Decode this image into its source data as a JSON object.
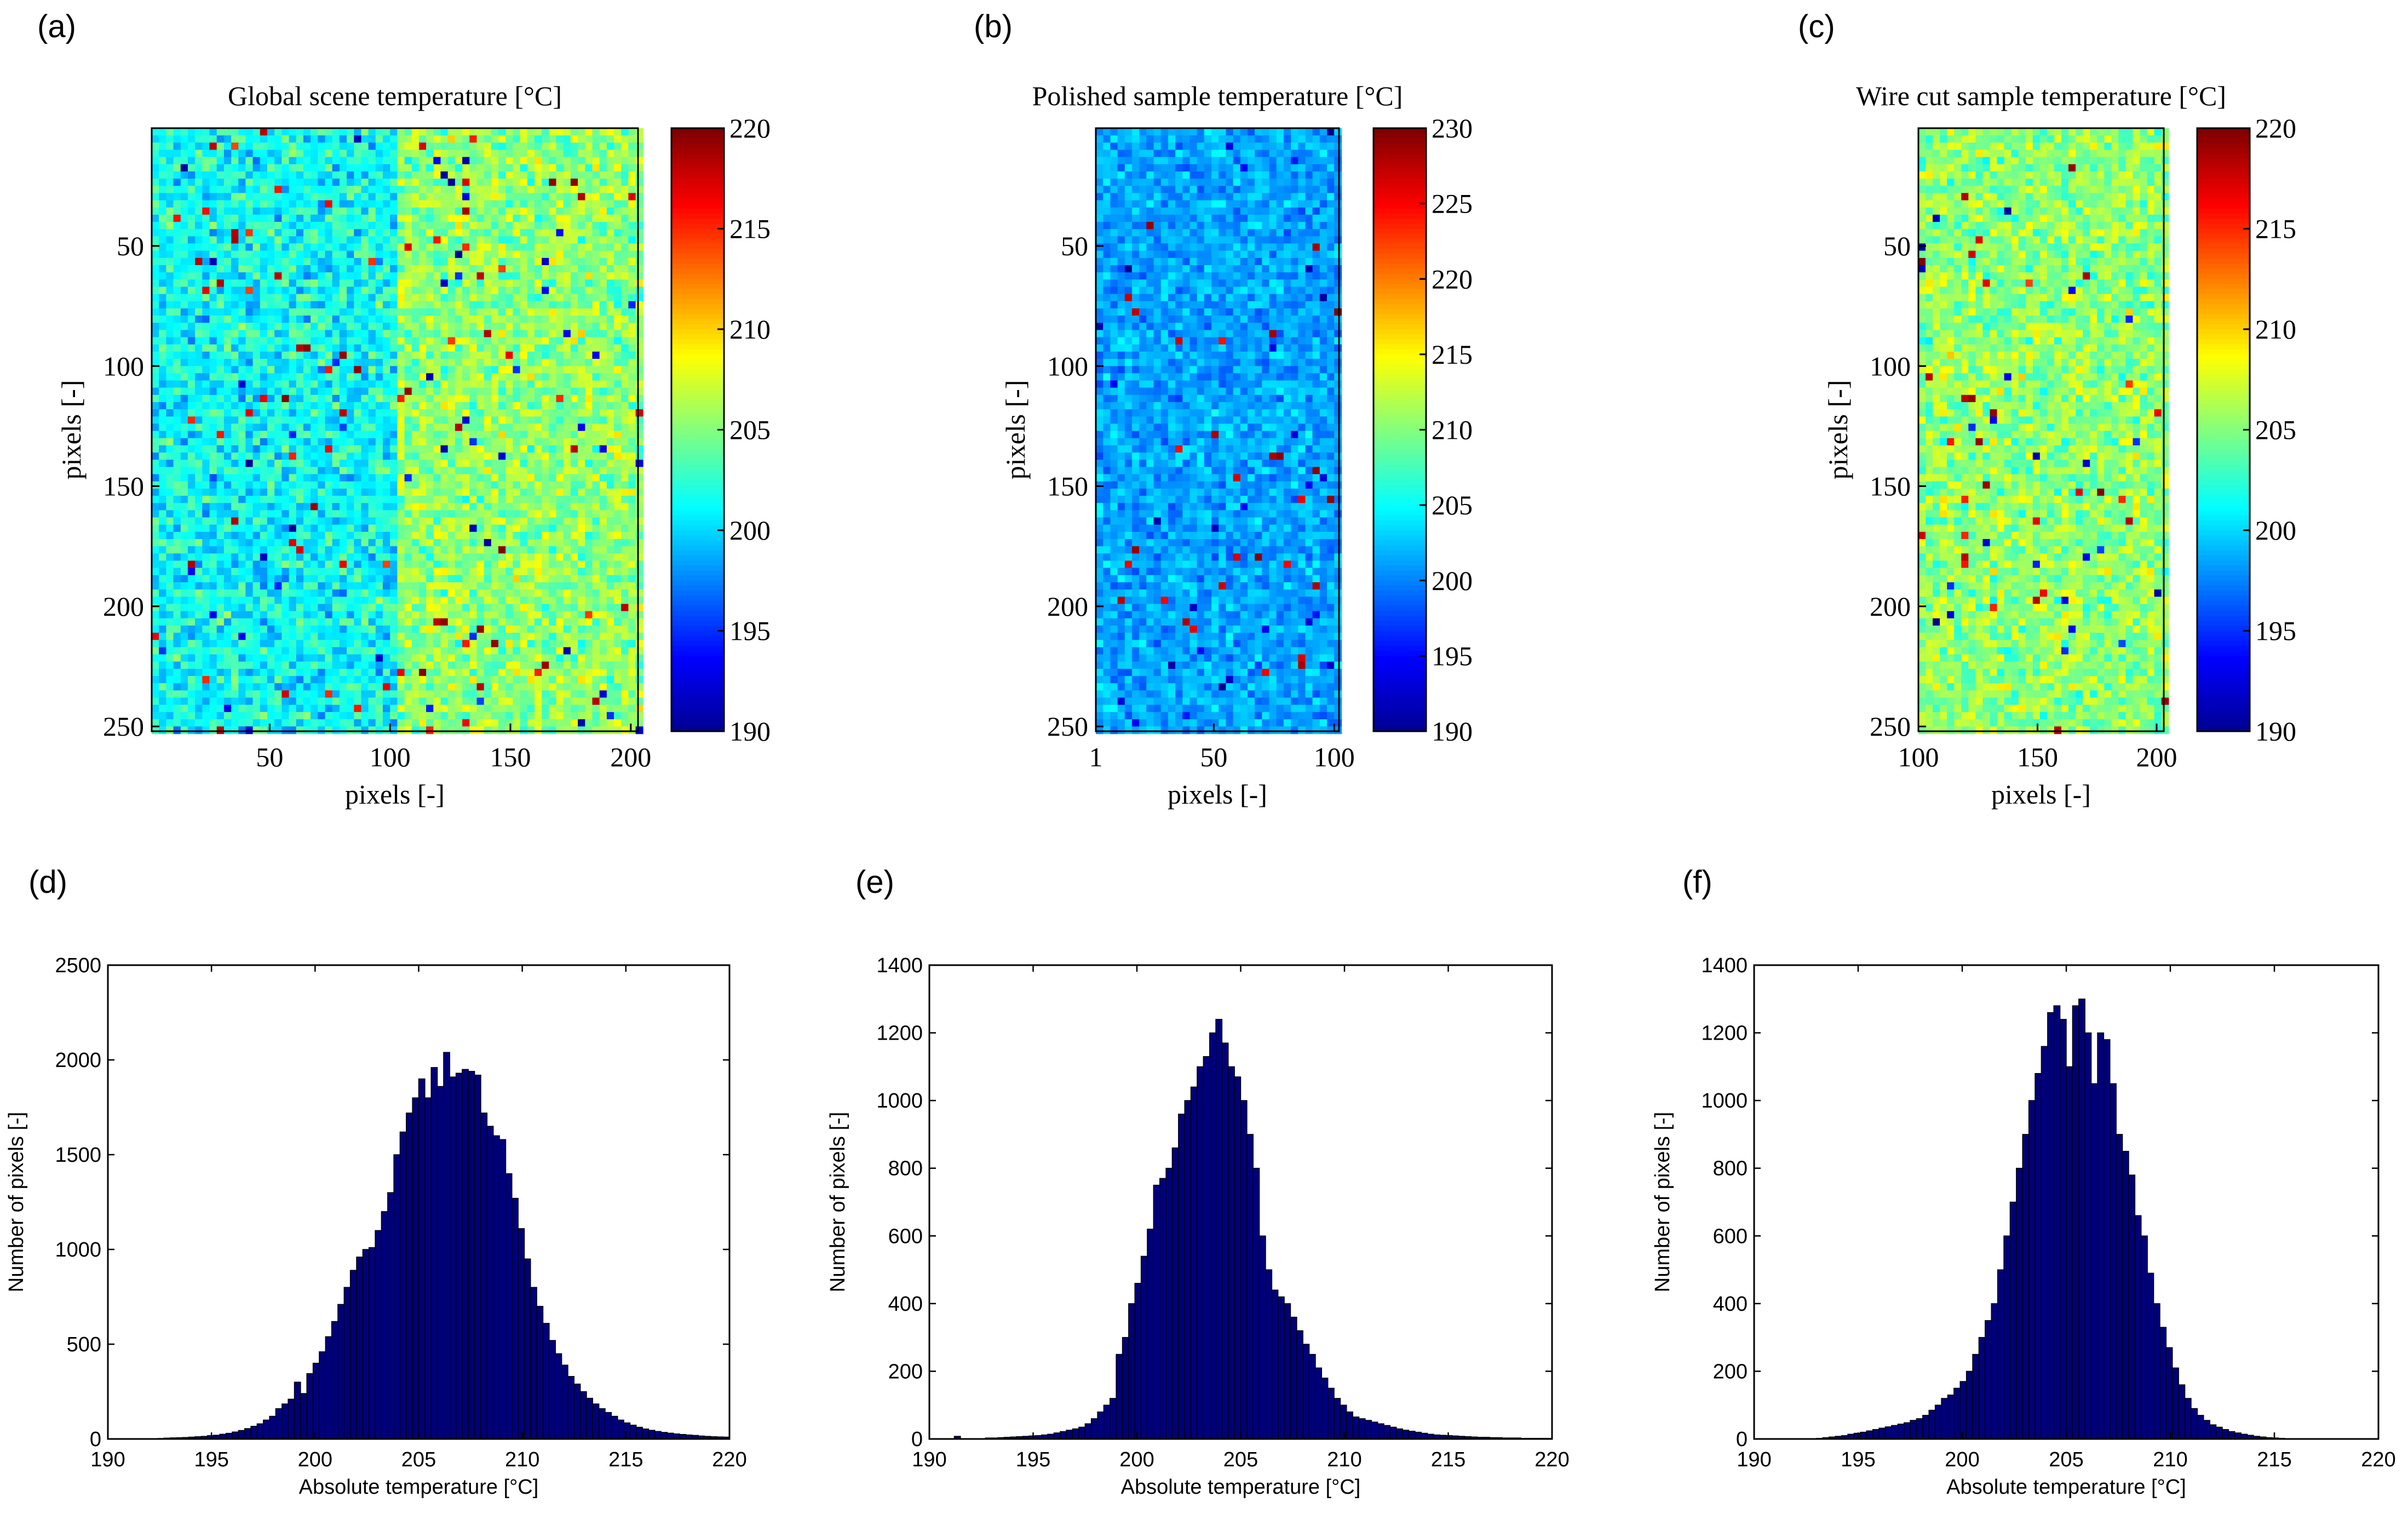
{
  "figure": {
    "panel_labels": [
      "(a)",
      "(b)",
      "(c)",
      "(d)",
      "(e)",
      "(f)"
    ]
  },
  "colormap": [
    "#00008F",
    "#0000FF",
    "#0080FF",
    "#00FFFF",
    "#80FF80",
    "#FFFF00",
    "#FF8000",
    "#FF0000",
    "#800000"
  ],
  "chart_data": [
    {
      "id": "a",
      "type": "heatmap",
      "title": "Global scene temperature [°C]",
      "xlabel": "pixels [-]",
      "ylabel": "pixels [-]",
      "xlim": [
        1,
        203
      ],
      "ylim": [
        1,
        252
      ],
      "xticks": [
        50,
        100,
        150,
        200
      ],
      "xtick_labels": [
        "50",
        "100",
        "150",
        "200"
      ],
      "yticks": [
        50,
        100,
        150,
        200,
        250
      ],
      "ytick_labels": [
        "50",
        "100",
        "150",
        "200",
        "250"
      ],
      "clim": [
        190,
        220
      ],
      "colorbar_ticks": [
        190,
        195,
        200,
        205,
        210,
        215,
        220
      ],
      "colorbar_labels": [
        "190",
        "195",
        "200",
        "205",
        "210",
        "215",
        "220"
      ],
      "field": {
        "left_mean": 201.5,
        "right_mean": 205.5,
        "split_x": 102,
        "noise": 4.5
      }
    },
    {
      "id": "b",
      "type": "heatmap",
      "title": "Polished sample temperature [°C]",
      "xlabel": "pixels [-]",
      "ylabel": "pixels [-]",
      "xlim": [
        1,
        102
      ],
      "ylim": [
        1,
        252
      ],
      "xticks": [
        1,
        50,
        100
      ],
      "xtick_labels": [
        "1",
        "50",
        "100"
      ],
      "yticks": [
        50,
        100,
        150,
        200,
        250
      ],
      "ytick_labels": [
        "50",
        "100",
        "150",
        "200",
        "250"
      ],
      "clim": [
        190,
        230
      ],
      "colorbar_ticks": [
        190,
        195,
        200,
        205,
        210,
        215,
        220,
        225,
        230
      ],
      "colorbar_labels": [
        "190",
        "195",
        "200",
        "205",
        "210",
        "215",
        "220",
        "225",
        "230"
      ],
      "field": {
        "left_mean": 201.5,
        "right_mean": 201.5,
        "split_x": 999,
        "noise": 4.0
      }
    },
    {
      "id": "c",
      "type": "heatmap",
      "title": "Wire cut sample temperature [°C]",
      "xlabel": "pixels [-]",
      "ylabel": "pixels [-]",
      "xlim": [
        100,
        203
      ],
      "ylim": [
        1,
        252
      ],
      "xticks": [
        100,
        150,
        200
      ],
      "xtick_labels": [
        "100",
        "150",
        "200"
      ],
      "yticks": [
        50,
        100,
        150,
        200,
        250
      ],
      "ytick_labels": [
        "50",
        "100",
        "150",
        "200",
        "250"
      ],
      "clim": [
        190,
        220
      ],
      "colorbar_ticks": [
        190,
        195,
        200,
        205,
        210,
        215,
        220
      ],
      "colorbar_labels": [
        "190",
        "195",
        "200",
        "205",
        "210",
        "215",
        "220"
      ],
      "field": {
        "left_mean": 205.5,
        "right_mean": 205.5,
        "split_x": 999,
        "noise": 4.5
      }
    },
    {
      "id": "d",
      "type": "bar",
      "subtype": "histogram",
      "xlabel": "Absolute temperature [°C]",
      "ylabel": "Number of pixels [-]",
      "xlim": [
        190,
        220
      ],
      "ylim": [
        0,
        2500
      ],
      "xticks": [
        190,
        195,
        200,
        205,
        210,
        215,
        220
      ],
      "xtick_labels": [
        "190",
        "195",
        "200",
        "205",
        "210",
        "215",
        "220"
      ],
      "yticks": [
        0,
        500,
        1000,
        1500,
        2000,
        2500
      ],
      "ytick_labels": [
        "0",
        "500",
        "1000",
        "1500",
        "2000",
        "2500"
      ],
      "bin_start": 190,
      "bin_width": 0.3,
      "values": [
        0,
        0,
        0,
        0,
        0,
        0,
        0,
        2,
        3,
        5,
        6,
        7,
        8,
        10,
        12,
        14,
        18,
        20,
        25,
        30,
        37,
        45,
        55,
        67,
        80,
        100,
        120,
        160,
        185,
        210,
        300,
        240,
        345,
        400,
        460,
        540,
        620,
        710,
        800,
        890,
        960,
        1000,
        1010,
        1100,
        1200,
        1300,
        1500,
        1620,
        1720,
        1800,
        1900,
        1800,
        1960,
        1860,
        2040,
        1910,
        1930,
        1950,
        1940,
        1920,
        1720,
        1650,
        1600,
        1580,
        1400,
        1270,
        1110,
        950,
        800,
        700,
        610,
        520,
        450,
        390,
        330,
        290,
        250,
        215,
        185,
        160,
        140,
        120,
        100,
        85,
        73,
        62,
        53,
        46,
        40,
        35,
        31,
        27,
        24,
        21,
        19,
        16,
        14,
        12,
        11,
        10
      ]
    },
    {
      "id": "e",
      "type": "bar",
      "subtype": "histogram",
      "xlabel": "Absolute temperature [°C]",
      "ylabel": "Number of pixels [-]",
      "xlim": [
        190,
        220
      ],
      "ylim": [
        0,
        1400
      ],
      "xticks": [
        190,
        195,
        200,
        205,
        210,
        215,
        220
      ],
      "xtick_labels": [
        "190",
        "195",
        "200",
        "205",
        "210",
        "215",
        "220"
      ],
      "yticks": [
        0,
        200,
        400,
        600,
        800,
        1000,
        1200,
        1400
      ],
      "ytick_labels": [
        "0",
        "200",
        "400",
        "600",
        "800",
        "1000",
        "1200",
        "1400"
      ],
      "bin_start": 190,
      "bin_width": 0.3,
      "values": [
        0,
        0,
        0,
        0,
        8,
        0,
        0,
        0,
        0,
        3,
        3,
        4,
        5,
        6,
        7,
        8,
        9,
        10,
        12,
        14,
        18,
        22,
        26,
        30,
        35,
        45,
        60,
        80,
        100,
        120,
        250,
        300,
        400,
        460,
        540,
        620,
        750,
        770,
        800,
        860,
        960,
        1000,
        1040,
        1100,
        1130,
        1200,
        1240,
        1170,
        1100,
        1070,
        1000,
        900,
        800,
        600,
        500,
        440,
        420,
        400,
        360,
        320,
        280,
        250,
        210,
        180,
        150,
        120,
        100,
        80,
        65,
        60,
        55,
        50,
        45,
        40,
        35,
        30,
        26,
        23,
        20,
        17,
        14,
        12,
        11,
        10,
        9,
        8,
        7,
        6,
        5,
        5,
        4,
        4,
        3,
        3,
        3,
        2,
        2,
        2,
        2,
        2
      ]
    },
    {
      "id": "f",
      "type": "bar",
      "subtype": "histogram",
      "xlabel": "Absolute temperature [°C]",
      "ylabel": "Number of pixels [-]",
      "xlim": [
        190,
        220
      ],
      "ylim": [
        0,
        1400
      ],
      "xticks": [
        190,
        195,
        200,
        205,
        210,
        215,
        220
      ],
      "xtick_labels": [
        "190",
        "195",
        "200",
        "205",
        "210",
        "215",
        "220"
      ],
      "yticks": [
        0,
        200,
        400,
        600,
        800,
        1000,
        1200,
        1400
      ],
      "ytick_labels": [
        "0",
        "200",
        "400",
        "600",
        "800",
        "1000",
        "1200",
        "1400"
      ],
      "bin_start": 190,
      "bin_width": 0.3,
      "values": [
        0,
        0,
        0,
        0,
        0,
        0,
        0,
        0,
        0,
        0,
        2,
        4,
        6,
        8,
        10,
        14,
        17,
        20,
        24,
        28,
        32,
        36,
        40,
        44,
        48,
        55,
        60,
        70,
        85,
        100,
        120,
        130,
        150,
        170,
        200,
        250,
        300,
        350,
        400,
        500,
        600,
        700,
        800,
        900,
        1000,
        1080,
        1160,
        1260,
        1280,
        1240,
        1100,
        1280,
        1300,
        1200,
        1050,
        1200,
        1180,
        1050,
        900,
        850,
        780,
        660,
        600,
        490,
        400,
        330,
        270,
        210,
        160,
        120,
        90,
        70,
        55,
        42,
        35,
        28,
        22,
        18,
        14,
        11,
        8,
        6,
        4,
        3,
        2,
        0,
        0,
        0,
        0,
        0,
        0,
        0,
        0,
        0,
        0,
        0,
        0,
        0,
        0,
        0
      ]
    }
  ]
}
